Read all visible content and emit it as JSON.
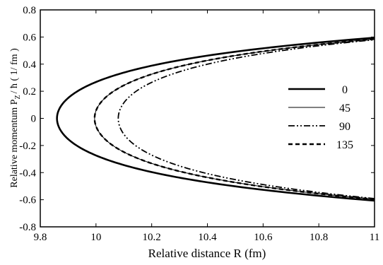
{
  "chart_data": {
    "type": "line",
    "xlabel": "Relative distance  R  (fm)",
    "ylabel": "Relative momentum  P",
    "ylabel_sub": "Z",
    "ylabel_tail": "/ ħ   ( 1/ fm )",
    "xlim": [
      9.8,
      11.0
    ],
    "ylim": [
      -0.8,
      0.8
    ],
    "xticks": [
      "9.8",
      "10",
      "10.2",
      "10.4",
      "10.6",
      "10.8",
      "11"
    ],
    "yticks": [
      "0.8",
      "0.6",
      "0.4",
      "0.2",
      "0",
      "-0.2",
      "-0.4",
      "-0.6",
      "-0.8"
    ],
    "grid": false,
    "legend_position": "right",
    "series": [
      {
        "name": "0",
        "style": "solid-thick",
        "R0": 9.86,
        "x": [
          9.86,
          9.9,
          10.0,
          10.2,
          10.4,
          10.6,
          10.8,
          11.0
        ],
        "y_upper": [
          0.0,
          0.16,
          0.27,
          0.38,
          0.45,
          0.51,
          0.56,
          0.595
        ]
      },
      {
        "name": "45",
        "style": "solid-thin",
        "R0": 9.995,
        "x": [
          9.995,
          10.0,
          10.2,
          10.4,
          10.6,
          10.8,
          11.0
        ],
        "y_upper": [
          0.0,
          0.05,
          0.28,
          0.39,
          0.46,
          0.525,
          0.585
        ]
      },
      {
        "name": "90",
        "style": "dash-dot",
        "R0": 10.08,
        "x": [
          10.08,
          10.2,
          10.4,
          10.6,
          10.8,
          11.0
        ],
        "y_upper": [
          0.0,
          0.21,
          0.36,
          0.45,
          0.52,
          0.58
        ]
      },
      {
        "name": "135",
        "style": "dashed",
        "R0": 9.995,
        "x": [
          9.995,
          10.0,
          10.2,
          10.4,
          10.6,
          10.8,
          11.0
        ],
        "y_upper": [
          0.0,
          0.05,
          0.28,
          0.39,
          0.46,
          0.525,
          0.585
        ]
      }
    ]
  }
}
